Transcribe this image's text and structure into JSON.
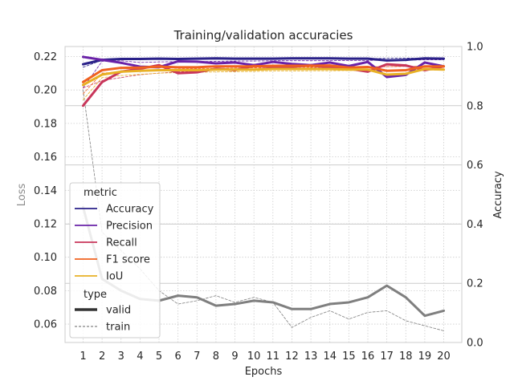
{
  "chart_data": {
    "type": "line",
    "title": "Training/validation accuracies",
    "xlabel": "Epochs",
    "ylabel_left": "Loss",
    "ylabel_right": "Accuracy",
    "x": [
      1,
      2,
      3,
      4,
      5,
      6,
      7,
      8,
      9,
      10,
      11,
      12,
      13,
      14,
      15,
      16,
      17,
      18,
      19,
      20
    ],
    "x_tick_labels": [
      "1",
      "2",
      "3",
      "4",
      "5",
      "6",
      "7",
      "8",
      "9",
      "10",
      "11",
      "12",
      "13",
      "14",
      "15",
      "16",
      "17",
      "18",
      "19",
      "20"
    ],
    "ylim_left": [
      0.049,
      0.226
    ],
    "yticks_left": [
      "0.06",
      "0.08",
      "0.10",
      "0.12",
      "0.14",
      "0.16",
      "0.18",
      "0.20",
      "0.22"
    ],
    "ylim_right": [
      0.0,
      1.0
    ],
    "yticks_right": [
      "0.0",
      "0.2",
      "0.4",
      "0.6",
      "0.8",
      "1.0"
    ],
    "grid": true,
    "loss_series": [
      {
        "type": "valid",
        "color": "#7f7f7f",
        "values": [
          0.13,
          0.087,
          0.08,
          0.075,
          0.074,
          0.077,
          0.076,
          0.071,
          0.072,
          0.074,
          0.073,
          0.069,
          0.069,
          0.072,
          0.073,
          0.076,
          0.083,
          0.076,
          0.065,
          0.068
        ]
      },
      {
        "type": "train",
        "color": "#7f7f7f",
        "values": [
          0.2,
          0.115,
          0.104,
          0.093,
          0.08,
          0.072,
          0.074,
          0.077,
          0.073,
          0.076,
          0.073,
          0.058,
          0.064,
          0.068,
          0.063,
          0.067,
          0.068,
          0.062,
          0.059,
          0.056
        ]
      }
    ],
    "accuracy_series": [
      {
        "metric": "Accuracy",
        "type": "valid",
        "color": "#2a2189",
        "values": [
          0.94,
          0.955,
          0.958,
          0.958,
          0.959,
          0.958,
          0.959,
          0.96,
          0.959,
          0.959,
          0.959,
          0.96,
          0.96,
          0.96,
          0.959,
          0.959,
          0.953,
          0.955,
          0.96,
          0.959
        ]
      },
      {
        "metric": "Accuracy",
        "type": "train",
        "color": "#2a2189",
        "values": [
          0.93,
          0.954,
          0.956,
          0.957,
          0.958,
          0.958,
          0.958,
          0.959,
          0.958,
          0.958,
          0.959,
          0.959,
          0.959,
          0.959,
          0.959,
          0.959,
          0.96,
          0.961,
          0.96,
          0.96
        ]
      },
      {
        "metric": "Precision",
        "type": "valid",
        "color": "#6a22a8",
        "values": [
          0.965,
          0.955,
          0.945,
          0.932,
          0.93,
          0.95,
          0.949,
          0.943,
          0.946,
          0.937,
          0.948,
          0.941,
          0.937,
          0.946,
          0.934,
          0.948,
          0.897,
          0.904,
          0.946,
          0.933
        ]
      },
      {
        "metric": "Precision",
        "type": "train",
        "color": "#6a22a8",
        "values": [
          0.86,
          0.95,
          0.952,
          0.946,
          0.948,
          0.949,
          0.949,
          0.95,
          0.951,
          0.951,
          0.952,
          0.952,
          0.952,
          0.952,
          0.953,
          0.953,
          0.954,
          0.954,
          0.955,
          0.955
        ]
      },
      {
        "metric": "Recall",
        "type": "valid",
        "color": "#c8365a",
        "values": [
          0.8,
          0.88,
          0.915,
          0.925,
          0.937,
          0.91,
          0.913,
          0.925,
          0.92,
          0.935,
          0.93,
          0.932,
          0.936,
          0.93,
          0.925,
          0.915,
          0.94,
          0.936,
          0.92,
          0.933
        ]
      },
      {
        "metric": "Recall",
        "type": "train",
        "color": "#c8365a",
        "values": [
          0.86,
          0.885,
          0.895,
          0.905,
          0.91,
          0.915,
          0.915,
          0.92,
          0.92,
          0.923,
          0.925,
          0.925,
          0.928,
          0.928,
          0.93,
          0.93,
          0.932,
          0.933,
          0.933,
          0.934
        ]
      },
      {
        "metric": "F1 score",
        "type": "valid",
        "color": "#f0621f",
        "values": [
          0.88,
          0.92,
          0.928,
          0.929,
          0.932,
          0.93,
          0.93,
          0.933,
          0.933,
          0.933,
          0.935,
          0.935,
          0.935,
          0.936,
          0.929,
          0.931,
          0.918,
          0.92,
          0.933,
          0.933
        ]
      },
      {
        "metric": "F1 score",
        "type": "train",
        "color": "#f0621f",
        "values": [
          0.84,
          0.91,
          0.915,
          0.918,
          0.922,
          0.924,
          0.925,
          0.926,
          0.927,
          0.928,
          0.929,
          0.93,
          0.93,
          0.931,
          0.931,
          0.932,
          0.932,
          0.933,
          0.933,
          0.934
        ]
      },
      {
        "metric": "IoU",
        "type": "valid",
        "color": "#e8b024",
        "values": [
          0.87,
          0.905,
          0.915,
          0.918,
          0.92,
          0.92,
          0.92,
          0.922,
          0.922,
          0.922,
          0.924,
          0.924,
          0.924,
          0.924,
          0.922,
          0.922,
          0.905,
          0.908,
          0.924,
          0.922
        ]
      },
      {
        "metric": "IoU",
        "type": "train",
        "color": "#e8b024",
        "values": [
          0.82,
          0.895,
          0.902,
          0.906,
          0.91,
          0.912,
          0.913,
          0.914,
          0.915,
          0.916,
          0.917,
          0.917,
          0.918,
          0.918,
          0.919,
          0.919,
          0.92,
          0.92,
          0.92,
          0.921
        ]
      }
    ],
    "legend": {
      "placement": "lower-left",
      "metric_title": "metric",
      "metric_entries": [
        {
          "label": "Accuracy",
          "color": "#2a2189"
        },
        {
          "label": "Precision",
          "color": "#6a22a8"
        },
        {
          "label": "Recall",
          "color": "#c8365a"
        },
        {
          "label": "F1 score",
          "color": "#f0621f"
        },
        {
          "label": "IoU",
          "color": "#e8b024"
        }
      ],
      "type_title": "type",
      "type_entries": [
        {
          "label": "valid",
          "style": "solid-thick",
          "color": "#333333"
        },
        {
          "label": "train",
          "style": "dashed-thin",
          "color": "#333333"
        }
      ]
    }
  }
}
